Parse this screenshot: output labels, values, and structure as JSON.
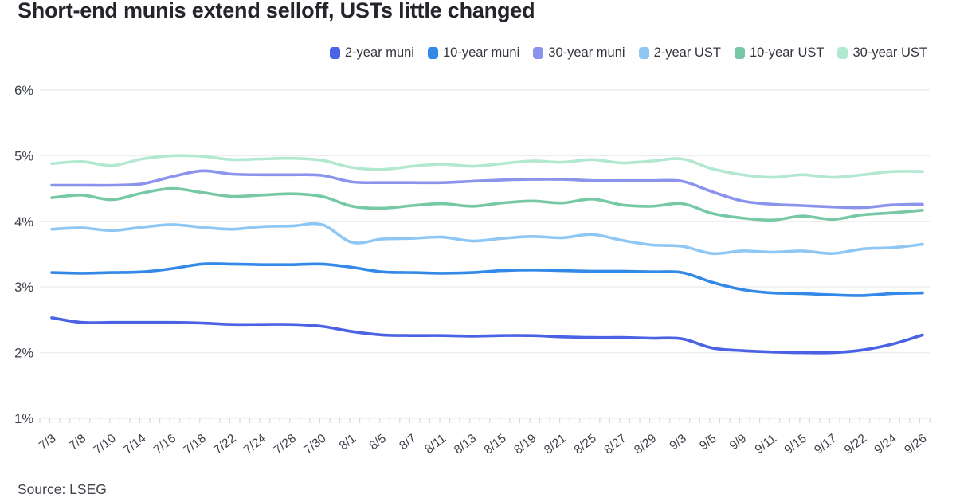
{
  "chart_data": {
    "type": "line",
    "title": "Short-end munis extend selloff, USTs little changed",
    "source": "Source: LSEG",
    "xlabel": "",
    "ylabel": "",
    "unit": "percent",
    "grid": "horizontal",
    "legend_position": "top-right",
    "ylim": [
      1,
      6
    ],
    "ytick_labels": [
      "6%",
      "5%",
      "4%",
      "3%",
      "2%",
      "1%"
    ],
    "x": [
      "7/3",
      "7/8",
      "7/10",
      "7/14",
      "7/16",
      "7/18",
      "7/22",
      "7/24",
      "7/28",
      "7/30",
      "8/1",
      "8/5",
      "8/7",
      "8/11",
      "8/13",
      "8/15",
      "8/19",
      "8/21",
      "8/25",
      "8/27",
      "8/29",
      "9/3",
      "9/5",
      "9/9",
      "9/11",
      "9/15",
      "9/17",
      "9/22",
      "9/24",
      "9/26"
    ],
    "series": [
      {
        "name": "2-year muni",
        "color": "#4A62E3",
        "values": [
          2.53,
          2.46,
          2.46,
          2.46,
          2.46,
          2.45,
          2.43,
          2.43,
          2.43,
          2.4,
          2.32,
          2.27,
          2.26,
          2.26,
          2.25,
          2.26,
          2.26,
          2.24,
          2.23,
          2.23,
          2.22,
          2.21,
          2.07,
          2.03,
          2.01,
          2.0,
          2.0,
          2.04,
          2.13,
          2.27
        ]
      },
      {
        "name": "10-year muni",
        "color": "#3389E8",
        "values": [
          3.22,
          3.21,
          3.22,
          3.23,
          3.28,
          3.35,
          3.35,
          3.34,
          3.34,
          3.35,
          3.3,
          3.23,
          3.22,
          3.21,
          3.22,
          3.25,
          3.26,
          3.25,
          3.24,
          3.24,
          3.23,
          3.22,
          3.07,
          2.96,
          2.91,
          2.9,
          2.88,
          2.87,
          2.9,
          2.91
        ]
      },
      {
        "name": "30-year muni",
        "color": "#8B94EC",
        "values": [
          4.55,
          4.55,
          4.55,
          4.57,
          4.68,
          4.77,
          4.72,
          4.71,
          4.71,
          4.7,
          4.6,
          4.59,
          4.59,
          4.59,
          4.61,
          4.63,
          4.64,
          4.64,
          4.62,
          4.62,
          4.62,
          4.61,
          4.45,
          4.31,
          4.26,
          4.24,
          4.22,
          4.21,
          4.25,
          4.26
        ]
      },
      {
        "name": "2-year UST",
        "color": "#8FC7F4",
        "values": [
          3.88,
          3.9,
          3.86,
          3.91,
          3.95,
          3.91,
          3.88,
          3.92,
          3.93,
          3.95,
          3.68,
          3.73,
          3.74,
          3.76,
          3.7,
          3.74,
          3.77,
          3.75,
          3.8,
          3.71,
          3.64,
          3.62,
          3.51,
          3.55,
          3.53,
          3.55,
          3.51,
          3.58,
          3.6,
          3.65
        ]
      },
      {
        "name": "10-year UST",
        "color": "#77C8A4",
        "values": [
          4.36,
          4.4,
          4.33,
          4.43,
          4.5,
          4.44,
          4.38,
          4.4,
          4.42,
          4.38,
          4.23,
          4.2,
          4.24,
          4.27,
          4.23,
          4.28,
          4.31,
          4.28,
          4.34,
          4.25,
          4.23,
          4.27,
          4.12,
          4.05,
          4.02,
          4.08,
          4.03,
          4.1,
          4.13,
          4.17
        ]
      },
      {
        "name": "30-year UST",
        "color": "#B2E8CF",
        "values": [
          4.88,
          4.91,
          4.85,
          4.95,
          5.0,
          4.99,
          4.94,
          4.95,
          4.96,
          4.93,
          4.82,
          4.79,
          4.84,
          4.87,
          4.84,
          4.88,
          4.92,
          4.9,
          4.94,
          4.89,
          4.92,
          4.95,
          4.8,
          4.71,
          4.67,
          4.71,
          4.67,
          4.71,
          4.76,
          4.76
        ]
      }
    ],
    "colors": {
      "grid": "#EDEDEF",
      "tick": "#D9D9DC",
      "axis_text": "#3C4048",
      "title_text": "#23252B",
      "legend_text": "#33363C",
      "background": "#FFFFFF"
    }
  }
}
